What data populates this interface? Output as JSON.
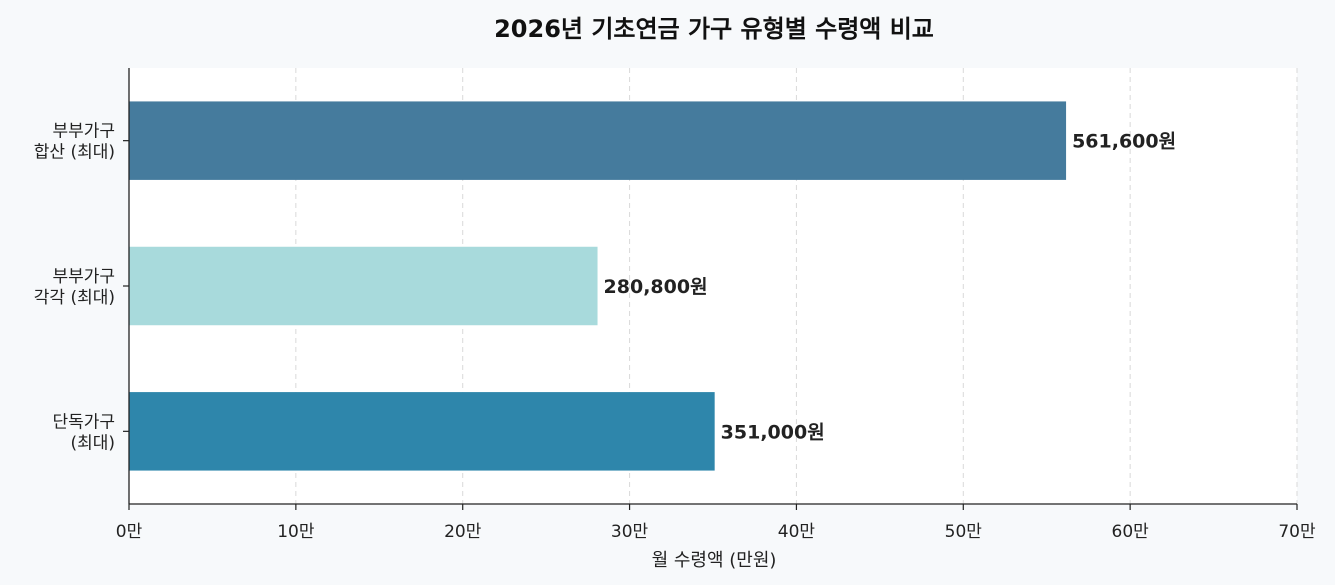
{
  "chart_data": {
    "type": "bar",
    "orientation": "horizontal",
    "title": "2026년 기초연금 가구 유형별 수령액 비교",
    "xlabel": "월 수령액 (만원)",
    "ylabel": "",
    "xlim": [
      0,
      70
    ],
    "x_ticks": [
      0,
      10,
      20,
      30,
      40,
      50,
      60,
      70
    ],
    "x_tick_labels": [
      "0만",
      "10만",
      "20만",
      "30만",
      "40만",
      "50만",
      "60만",
      "70만"
    ],
    "grid": "vertical dashed",
    "categories": [
      {
        "label_lines": [
          "부부가구",
          "합산 (최대)"
        ],
        "value": 56.16,
        "data_label": "561,600원",
        "color": "#457b9d"
      },
      {
        "label_lines": [
          "부부가구",
          "각각 (최대)"
        ],
        "value": 28.08,
        "data_label": "280,800원",
        "color": "#a8dadc"
      },
      {
        "label_lines": [
          "단독가구",
          "(최대)"
        ],
        "value": 35.1,
        "data_label": "351,000원",
        "color": "#2e86ab"
      }
    ]
  }
}
